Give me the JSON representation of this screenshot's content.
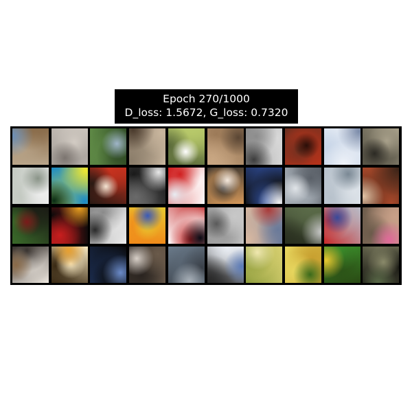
{
  "title": {
    "line1": "Epoch 270/1000",
    "line2": "D_loss: 1.5672, G_loss: 0.7320"
  },
  "grid": {
    "rows": 4,
    "cols": 10,
    "background": "#000000",
    "tiles": [
      [
        "#b9a58a",
        "#6b8fb8",
        "#8a6c4a"
      ],
      [
        "#a8a29c",
        "#7c7570",
        "#d2cbc3"
      ],
      [
        "#5f8a46",
        "#9fb5c8",
        "#2f4a24"
      ],
      [
        "#8b7d6a",
        "#4a3a2c",
        "#c9b69e"
      ],
      [
        "#b8c96a",
        "#ffffff",
        "#5a6a3a"
      ],
      [
        "#9c7a58",
        "#5a4634",
        "#c8a682"
      ],
      [
        "#d8d8d8",
        "#3c3c3c",
        "#8c8c8c"
      ],
      [
        "#b8321a",
        "#2a0e08",
        "#6a3020"
      ],
      [
        "#c9d6e8",
        "#7a8aa8",
        "#eef2f8"
      ],
      [
        "#5a5648",
        "#2c2a24",
        "#a8a08a"
      ],
      [
        "#c2c8c0",
        "#8a9488",
        "#eeeeee"
      ],
      [
        "#1a8ac8",
        "#0a2c14",
        "#f0e830"
      ],
      [
        "#c8321e",
        "#f4e4d2",
        "#2a1a14"
      ],
      [
        "#1a1a1a",
        "#e8e8e8",
        "#6a6a6a"
      ],
      [
        "#ffffff",
        "#e8ecf2",
        "#d02020"
      ],
      [
        "#d89a5a",
        "#f4e8dc",
        "#2a2a2a"
      ],
      [
        "#101010",
        "#f0f0f0",
        "#3050a0"
      ],
      [
        "#a8b0b8",
        "#e0e4e8",
        "#5a6068"
      ],
      [
        "#b8c2cc",
        "#7a8894",
        "#dce2e8"
      ],
      [
        "#a8482a",
        "#e0c2a4",
        "#3a2418"
      ],
      [
        "#1a1a14",
        "#7a1a1a",
        "#3a6a2a"
      ],
      [
        "#0a0a0a",
        "#e8a020",
        "#c81e1e"
      ],
      [
        "#eeeeee",
        "#2a2a2a",
        "#8a8a8a"
      ],
      [
        "#f08a1a",
        "#3a5ab8",
        "#e8c830"
      ],
      [
        "#ffffff",
        "#0a0a14",
        "#c02020"
      ],
      [
        "#9a9a9a",
        "#5a5a5a",
        "#c8c8c8"
      ],
      [
        "#d8b8a0",
        "#a83a3a",
        "#6a7a9a"
      ],
      [
        "#5a6a48",
        "#c8c8c8",
        "#2a3020"
      ],
      [
        "#b8bcc8",
        "#3a4a9a",
        "#c82a2a"
      ],
      [
        "#c8a088",
        "#e06a9a",
        "#6a5a4a"
      ],
      [
        "#eee8e0",
        "#8a6a48",
        "#3a3430"
      ],
      [
        "#3a2a14",
        "#e8a030",
        "#f8e8c0"
      ],
      [
        "#1a2a4a",
        "#6a8ac8",
        "#0a0a0a"
      ],
      [
        "#2a2420",
        "#d8d0c8",
        "#6a5a4a"
      ],
      [
        "#6a7a8a",
        "#a8b0b8",
        "#3a4048"
      ],
      [
        "#e8ecf2",
        "#5a7ab8",
        "#2a2a2a"
      ],
      [
        "#d8d070",
        "#f0e8b0",
        "#8a9a3a"
      ],
      [
        "#c8a030",
        "#3a6a1a",
        "#e8d860"
      ],
      [
        "#2a4a14",
        "#e8c830",
        "#3a8a2a"
      ],
      [
        "#1a1a14",
        "#5a6a48",
        "#8a8a6a"
      ]
    ]
  }
}
